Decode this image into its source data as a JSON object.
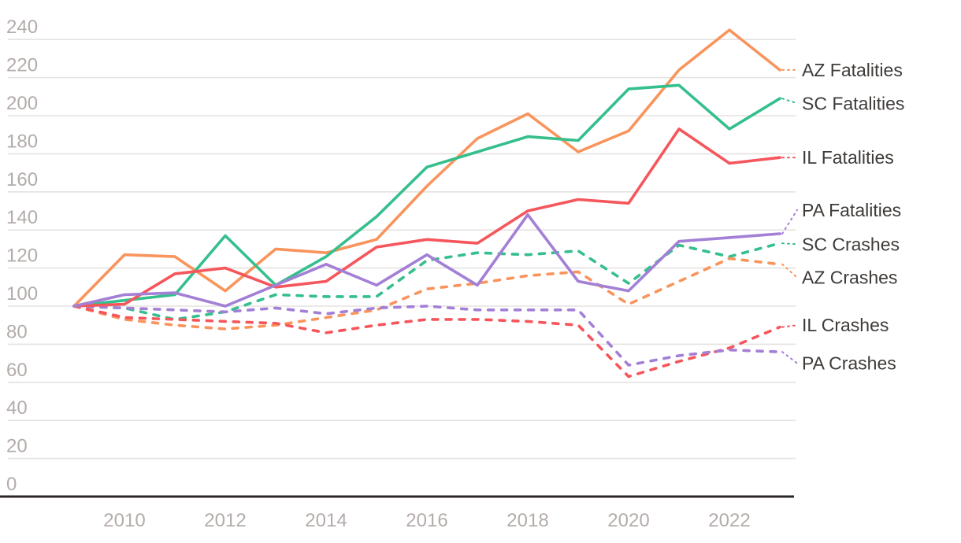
{
  "chart_data": {
    "type": "line",
    "title": "",
    "xlabel": "",
    "ylabel": "",
    "x": [
      2009,
      2010,
      2011,
      2012,
      2013,
      2014,
      2015,
      2016,
      2017,
      2018,
      2019,
      2020,
      2021,
      2022,
      2023
    ],
    "xticks": [
      2010,
      2012,
      2014,
      2016,
      2018,
      2020,
      2022
    ],
    "yticks": [
      0,
      20,
      40,
      60,
      80,
      100,
      120,
      140,
      160,
      180,
      200,
      220,
      240
    ],
    "ylim": [
      0,
      248
    ],
    "grid": "horizontal",
    "legend_position": "right-of-line-ends",
    "index_base_note": "all series start at 100 in 2009",
    "series": [
      {
        "name": "SC Crashes",
        "state": "SC",
        "metric": "Crashes",
        "style": "dashed",
        "color": "#35bf8d",
        "values": [
          100,
          99,
          93,
          97,
          106,
          105,
          105,
          124,
          128,
          127,
          129,
          112,
          132,
          126,
          133
        ],
        "label_y_value": 132.5
      },
      {
        "name": "AZ Crashes",
        "state": "AZ",
        "metric": "Crashes",
        "style": "dashed",
        "color": "#f8945c",
        "values": [
          100,
          93,
          90,
          88,
          90,
          94,
          98,
          109,
          112,
          116,
          118,
          101,
          113,
          125,
          122
        ],
        "label_y_value": 115
      },
      {
        "name": "IL Crashes",
        "state": "IL",
        "metric": "Crashes",
        "style": "dashed",
        "color": "#f5565c",
        "values": [
          100,
          94,
          93,
          92,
          91,
          86,
          90,
          93,
          93,
          92,
          90,
          63,
          71,
          78,
          89
        ],
        "label_y_value": 90
      },
      {
        "name": "PA Crashes",
        "state": "PA",
        "metric": "Crashes",
        "style": "dashed",
        "color": "#a37fd6",
        "values": [
          100,
          99,
          98,
          97,
          99,
          96,
          99,
          100,
          98,
          98,
          98,
          69,
          74,
          77,
          76
        ],
        "label_y_value": 70
      },
      {
        "name": "AZ Fatalities",
        "state": "AZ",
        "metric": "Fatalities",
        "style": "solid",
        "color": "#f8945c",
        "values": [
          100,
          127,
          126,
          108,
          130,
          128,
          135,
          163,
          188,
          201,
          181,
          192,
          224,
          245,
          224
        ],
        "label_y_value": 224
      },
      {
        "name": "SC Fatalities",
        "state": "SC",
        "metric": "Fatalities",
        "style": "solid",
        "color": "#35bf8d",
        "values": [
          100,
          103,
          106,
          137,
          111,
          126,
          147,
          173,
          181,
          189,
          187,
          214,
          216,
          193,
          209
        ],
        "label_y_value": 206.5
      },
      {
        "name": "IL Fatalities",
        "state": "IL",
        "metric": "Fatalities",
        "style": "solid",
        "color": "#f5565c",
        "values": [
          100,
          101,
          117,
          120,
          110,
          113,
          131,
          135,
          133,
          150,
          156,
          154,
          193,
          175,
          178
        ],
        "label_y_value": 178
      },
      {
        "name": "PA Fatalities",
        "state": "PA",
        "metric": "Fatalities",
        "style": "solid",
        "color": "#a37fd6",
        "values": [
          100,
          106,
          107,
          100,
          111,
          122,
          111,
          127,
          111,
          148,
          113,
          108,
          134,
          136,
          138
        ],
        "label_y_value": 150.5
      }
    ]
  },
  "colors": {
    "gridline": "#e5e2e1",
    "axis": "#2b2624",
    "tick_text": "#b3acaa",
    "label_text": "#3e3b39",
    "background": "#ffffff"
  }
}
